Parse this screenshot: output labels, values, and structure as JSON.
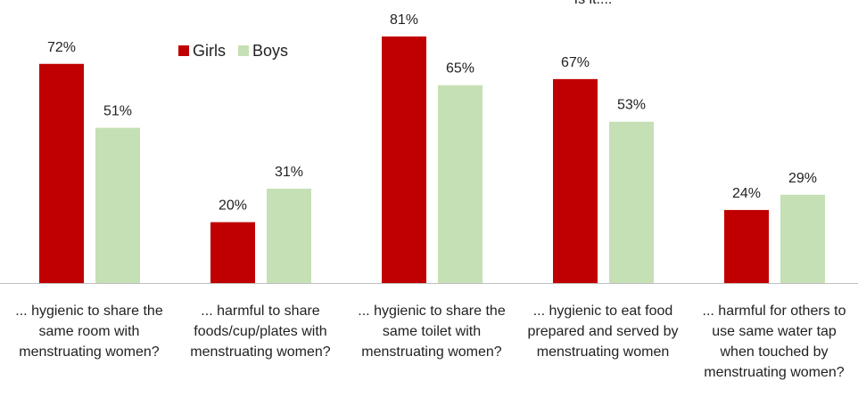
{
  "chart_data": {
    "type": "bar",
    "title": "Is it....",
    "categories": [
      "... hygienic to share the same room with menstruating women?",
      "... harmful to share foods/cup/plates with menstruating women?",
      "... hygienic to share the same toilet with menstruating women?",
      "... hygienic to eat food prepared and served by menstruating women",
      "... harmful for others to use same water tap when touched by menstruating women?"
    ],
    "series": [
      {
        "name": "Girls",
        "color": "#c00000",
        "values": [
          72,
          20,
          81,
          67,
          24
        ],
        "value_labels": [
          "72%",
          "20%",
          "81%",
          "67%",
          "24%"
        ]
      },
      {
        "name": "Boys",
        "color": "#c5e0b4",
        "values": [
          51,
          31,
          65,
          53,
          29
        ],
        "value_labels": [
          "51%",
          "31%",
          "65%",
          "53%",
          "29%"
        ]
      }
    ],
    "legend": "top-left"
  }
}
